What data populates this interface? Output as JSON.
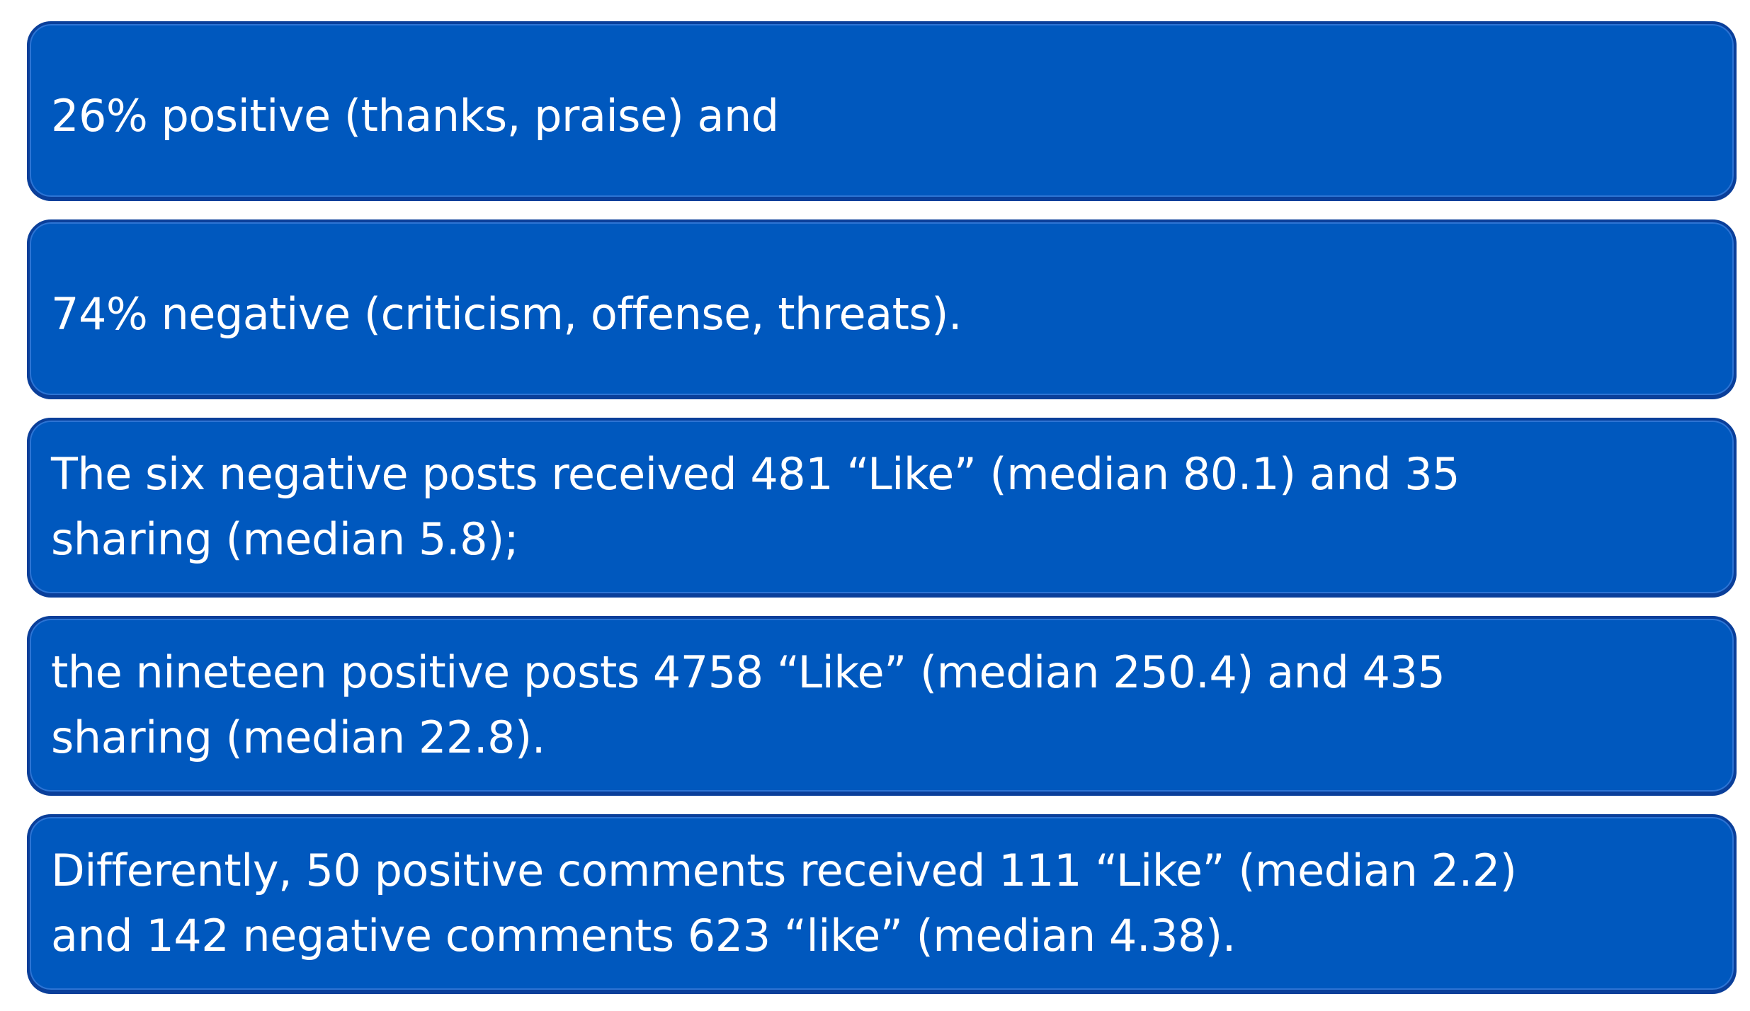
{
  "colors": {
    "box_fill": "#0058be",
    "box_border": "#0a3f9a",
    "text": "#ffffff",
    "background": "#ffffff"
  },
  "boxes": [
    {
      "text": "26% positive (thanks, praise) and"
    },
    {
      "text": "74% negative (criticism, offense, threats)."
    },
    {
      "text": "The six negative posts received 481 “Like” (median 80.1) and 35\nsharing (median 5.8);"
    },
    {
      "text": "the nineteen positive posts 4758 “Like” (median 250.4) and 435\nsharing (median 22.8)."
    },
    {
      "text": "Differently, 50 positive comments received 111 “Like” (median 2.2)\nand 142 negative comments 623 “like” (median 4.38)."
    }
  ]
}
